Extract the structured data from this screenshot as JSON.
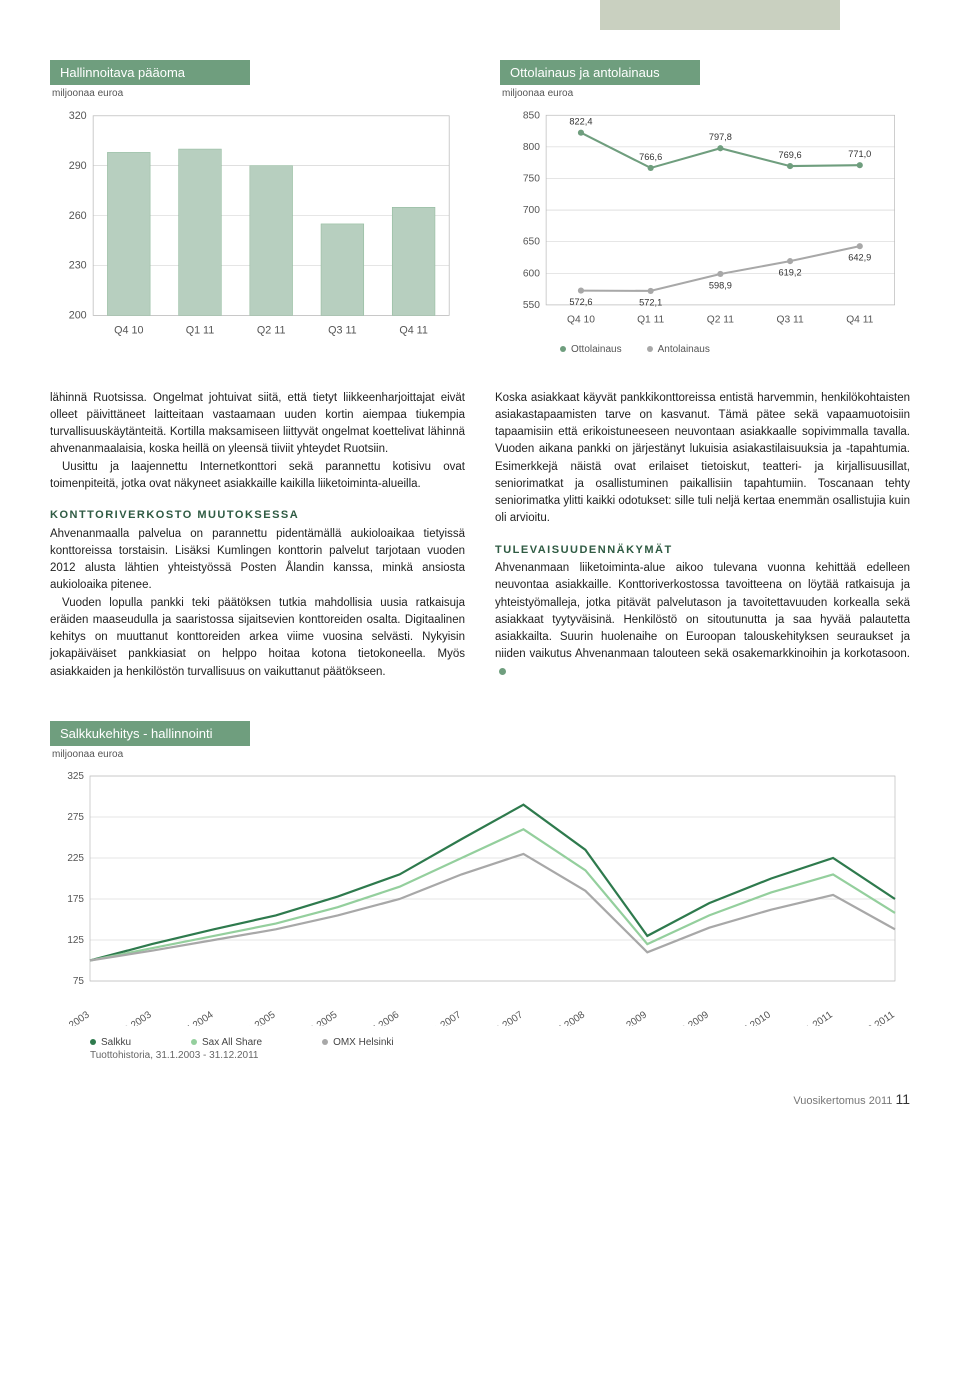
{
  "chart1": {
    "title": "Hallinnoitava pääoma",
    "subtitle": "miljoonaa euroa",
    "categories": [
      "Q4 10",
      "Q1 11",
      "Q2 11",
      "Q3 11",
      "Q4 11"
    ],
    "values": [
      298,
      300,
      290,
      255,
      265
    ],
    "ylim": [
      200,
      320
    ],
    "ytick_step": 30,
    "bar_color": "#b7cfbf",
    "grid_color": "#cccccc",
    "axis_fontsize": 10
  },
  "chart2": {
    "title": "Ottolainaus ja antolainaus",
    "subtitle": "miljoonaa euroa",
    "categories": [
      "Q4 10",
      "Q1 11",
      "Q2 11",
      "Q3 11",
      "Q4 11"
    ],
    "series": [
      {
        "name": "Ottolainaus",
        "color": "#6f9e7e",
        "values": [
          822.4,
          766.6,
          797.8,
          769.6,
          771.0
        ],
        "labels": [
          "822,4",
          "766,6",
          "797,8",
          "769,6",
          "771,0"
        ]
      },
      {
        "name": "Antolainaus",
        "color": "#a8a8a8",
        "values": [
          572.6,
          572.1,
          598.9,
          619.2,
          642.9
        ],
        "labels": [
          "572,6",
          "572,1",
          "598,9",
          "619,2",
          "642,9"
        ]
      }
    ],
    "ylim": [
      550,
      850
    ],
    "ytick_step": 50,
    "grid_color": "#cccccc"
  },
  "body": {
    "col1": {
      "p1": "lähinnä Ruotsissa. Ongelmat johtuivat siitä, että tietyt liikkeenharjoittajat eivät olleet päivittäneet laitteitaan vastaamaan uuden kortin aiempaa tiukempia turvallisuuskäytänteitä. Kortilla maksamiseen liittyvät ongelmat koettelivat lähinnä ahvenanmaalaisia, koska heillä on yleensä tiiviit yhteydet Ruotsiin.",
      "p2": "Uusittu ja laajennettu Internetkonttori sekä parannettu kotisivu ovat toimenpiteitä, jotka ovat näkyneet asiakkaille kaikilla liiketoiminta-alueilla.",
      "h1": "KONTTORIVERKOSTO MUUTOKSESSA",
      "p3": "Ahvenanmaalla palvelua on parannettu pidentämällä aukioloaikaa tietyissä konttoreissa torstaisin. Lisäksi Kumlingen konttorin palvelut tarjotaan vuoden 2012 alusta lähtien yhteistyössä Posten Ålandin kanssa, minkä ansiosta aukioloaika pitenee.",
      "p4": "Vuoden lopulla pankki teki päätöksen tutkia mahdollisia uusia ratkaisuja eräiden maaseudulla ja saaristossa sijaitsevien konttoreiden osalta. Digitaalinen kehitys on muuttanut konttoreiden arkea viime vuosina selvästi. Nykyisin jokapäiväiset pankkiasiat on helppo hoitaa kotona tietokoneella. Myös asiakkaiden ja henkilöstön turvallisuus on vaikuttanut päätökseen."
    },
    "col2": {
      "p1": "Koska asiakkaat käyvät pankkikonttoreissa entistä harvemmin, henkilökohtaisten asiakastapaamisten tarve on kasvanut. Tämä pätee sekä vapaamuotoisiin tapaamisiin että erikoistuneeseen neuvontaan asiakkaalle sopivimmalla tavalla. Vuoden aikana pankki on järjestänyt lukuisia asiakastilaisuuksia ja -tapahtumia. Esimerkkejä näistä ovat erilaiset tietoiskut, teatteri- ja kirjallisuusillat, seniorimatkat ja osallistuminen paikallisiin tapahtumiin. Toscanaan tehty seniorimatka ylitti kaikki odotukset: sille tuli neljä kertaa enemmän osallistujia kuin oli arvioitu.",
      "h1": "TULEVAISUUDENNÄKYMÄT",
      "p2": "Ahvenanmaan liiketoiminta-alue aikoo tulevana vuonna kehittää edelleen neuvontaa asiakkaille. Konttoriverkostossa tavoitteena on löytää ratkaisuja ja yhteistyömalleja, jotka pitävät palvelutason ja tavoitettavuuden korkealla sekä asiakkaat tyytyväisinä. Henkilöstö on sitoutunutta ja saa hyvää palautetta asiakkailta. Suurin huolenaihe on Euroopan talouskehityksen seuraukset ja niiden vaikutus Ahvenanmaan talouteen sekä osakemarkkinoihin ja korkotasoon."
    }
  },
  "chart3": {
    "title": "Salkkukehitys - hallinnointi",
    "subtitle": "miljoonaa euroa",
    "ylim": [
      75,
      325
    ],
    "ytick_step": 50,
    "x_labels": [
      "31.1.2003",
      "30.9.2003",
      "31.5.2004",
      "31.1.2005",
      "30.9.2005",
      "31.5.2006",
      "31.1.2007",
      "30.9.2007",
      "31.5.2008",
      "31.1.2009",
      "30.9.2009",
      "31.5.2010",
      "31.1.2011",
      "30.9.2011"
    ],
    "series": [
      {
        "name": "Salkku",
        "color": "#2e7a4d",
        "values": [
          100,
          120,
          138,
          155,
          178,
          205,
          248,
          290,
          235,
          130,
          170,
          200,
          225,
          175
        ]
      },
      {
        "name": "Sax All Share",
        "color": "#94cf9d",
        "values": [
          100,
          115,
          130,
          145,
          165,
          190,
          225,
          260,
          210,
          120,
          155,
          183,
          205,
          158
        ]
      },
      {
        "name": "OMX Helsinki",
        "color": "#a8a8a8",
        "values": [
          100,
          112,
          125,
          138,
          155,
          175,
          205,
          230,
          185,
          110,
          140,
          162,
          180,
          138
        ]
      }
    ],
    "caption": "Tuottohistoria, 31.1.2003 - 31.12.2011"
  },
  "footer": {
    "text": "Vuosikertomus 2011",
    "page": "11"
  }
}
